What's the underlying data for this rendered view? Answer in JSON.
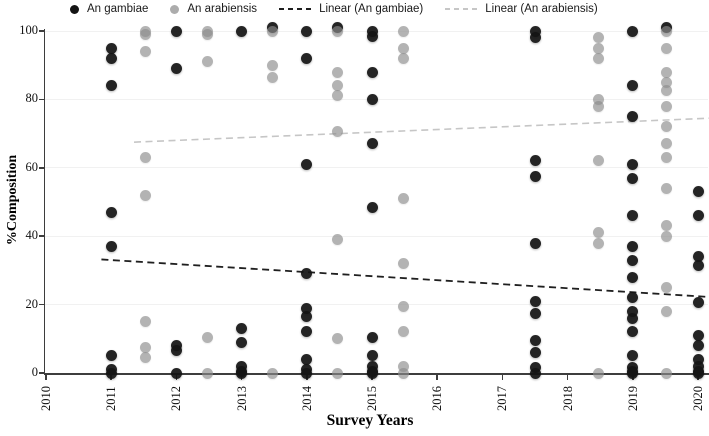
{
  "chart_data": {
    "type": "scatter",
    "title": "",
    "xlabel": "Survey Years",
    "ylabel": "%Composition",
    "x_ticks": [
      "2010",
      "2011",
      "2012",
      "2013",
      "2014",
      "2015",
      "2016",
      "2017",
      "2018",
      "2019",
      "2020"
    ],
    "y_ticks": [
      0,
      20,
      40,
      60,
      80,
      100
    ],
    "xlim": [
      2010,
      2020.3
    ],
    "ylim": [
      0,
      100
    ],
    "grid": "faint-horizontal",
    "legend_position": "top",
    "series": [
      {
        "name": "An gambiae",
        "type": "scatter",
        "marker": "circle",
        "color": "#141414",
        "points": [
          [
            2011,
            95
          ],
          [
            2011,
            92
          ],
          [
            2011,
            84
          ],
          [
            2011,
            47
          ],
          [
            2011,
            37
          ],
          [
            2011,
            5
          ],
          [
            2011,
            1
          ],
          [
            2011,
            0
          ],
          [
            2012,
            100
          ],
          [
            2012,
            89
          ],
          [
            2012,
            8
          ],
          [
            2012,
            6.5
          ],
          [
            2012,
            0
          ],
          [
            2013,
            100
          ],
          [
            2013,
            13
          ],
          [
            2013,
            9
          ],
          [
            2013,
            2
          ],
          [
            2013,
            0.5
          ],
          [
            2013,
            0
          ],
          [
            2013.47,
            101
          ],
          [
            2014,
            100
          ],
          [
            2014,
            92
          ],
          [
            2014,
            61
          ],
          [
            2014,
            29
          ],
          [
            2014,
            19
          ],
          [
            2014,
            16.5
          ],
          [
            2014,
            12
          ],
          [
            2014,
            4
          ],
          [
            2014,
            1
          ],
          [
            2014,
            0
          ],
          [
            2014.47,
            101
          ],
          [
            2015,
            100
          ],
          [
            2015,
            98.5
          ],
          [
            2015,
            88
          ],
          [
            2015,
            80
          ],
          [
            2015,
            67
          ],
          [
            2015,
            48.5
          ],
          [
            2015,
            10.5
          ],
          [
            2015,
            5
          ],
          [
            2015,
            2
          ],
          [
            2015,
            0.5
          ],
          [
            2015,
            0
          ],
          [
            2017.5,
            100
          ],
          [
            2017.5,
            98
          ],
          [
            2017.5,
            62
          ],
          [
            2017.5,
            57.5
          ],
          [
            2017.5,
            38
          ],
          [
            2017.5,
            21
          ],
          [
            2017.5,
            17.5
          ],
          [
            2017.5,
            9.5
          ],
          [
            2017.5,
            6
          ],
          [
            2017.5,
            1.5
          ],
          [
            2017.5,
            0
          ],
          [
            2019,
            100
          ],
          [
            2019,
            84
          ],
          [
            2019,
            75
          ],
          [
            2019,
            61
          ],
          [
            2019,
            57
          ],
          [
            2019,
            46
          ],
          [
            2019,
            37
          ],
          [
            2019,
            33
          ],
          [
            2019,
            28
          ],
          [
            2019,
            22
          ],
          [
            2019,
            18
          ],
          [
            2019,
            16
          ],
          [
            2019,
            12
          ],
          [
            2019,
            5
          ],
          [
            2019,
            1.5
          ],
          [
            2019,
            0.5
          ],
          [
            2019,
            0
          ],
          [
            2019.51,
            101
          ],
          [
            2020,
            53
          ],
          [
            2020,
            46
          ],
          [
            2020,
            34
          ],
          [
            2020,
            31.5
          ],
          [
            2020,
            20.5
          ],
          [
            2020,
            11
          ],
          [
            2020,
            8
          ],
          [
            2020,
            4
          ],
          [
            2020,
            2
          ],
          [
            2020,
            0.5
          ],
          [
            2020,
            0
          ]
        ]
      },
      {
        "name": "An arabiensis",
        "type": "scatter",
        "marker": "circle",
        "color": "#8c8c8c",
        "points": [
          [
            2011.52,
            100
          ],
          [
            2011.52,
            99
          ],
          [
            2011.52,
            94
          ],
          [
            2011.52,
            63
          ],
          [
            2011.52,
            52
          ],
          [
            2011.52,
            15
          ],
          [
            2011.52,
            7.5
          ],
          [
            2011.52,
            4.5
          ],
          [
            2012.48,
            100
          ],
          [
            2012.48,
            99
          ],
          [
            2012.48,
            91
          ],
          [
            2012.48,
            10.5
          ],
          [
            2012.48,
            0
          ],
          [
            2013.47,
            100
          ],
          [
            2013.47,
            90
          ],
          [
            2013.47,
            86.5
          ],
          [
            2013.47,
            0
          ],
          [
            2014.47,
            100
          ],
          [
            2014.47,
            88
          ],
          [
            2014.47,
            84
          ],
          [
            2014.47,
            81
          ],
          [
            2014.47,
            70.5
          ],
          [
            2014.47,
            39
          ],
          [
            2014.47,
            10
          ],
          [
            2014.47,
            0
          ],
          [
            2015.48,
            100
          ],
          [
            2015.48,
            95
          ],
          [
            2015.48,
            92
          ],
          [
            2015.48,
            51
          ],
          [
            2015.48,
            32
          ],
          [
            2015.48,
            19.5
          ],
          [
            2015.48,
            12
          ],
          [
            2015.48,
            2
          ],
          [
            2015.48,
            0
          ],
          [
            2018.47,
            98
          ],
          [
            2018.47,
            95
          ],
          [
            2018.47,
            92
          ],
          [
            2018.47,
            80
          ],
          [
            2018.47,
            78
          ],
          [
            2018.47,
            62
          ],
          [
            2018.47,
            41
          ],
          [
            2018.47,
            38
          ],
          [
            2018.47,
            0
          ],
          [
            2019.51,
            100
          ],
          [
            2019.51,
            95
          ],
          [
            2019.51,
            88
          ],
          [
            2019.51,
            85
          ],
          [
            2019.51,
            82.5
          ],
          [
            2019.51,
            78
          ],
          [
            2019.51,
            72
          ],
          [
            2019.51,
            67
          ],
          [
            2019.51,
            63
          ],
          [
            2019.51,
            54
          ],
          [
            2019.51,
            43
          ],
          [
            2019.51,
            40
          ],
          [
            2019.51,
            25
          ],
          [
            2019.51,
            18
          ],
          [
            2019.51,
            0
          ]
        ]
      },
      {
        "name": "Linear (An gambiae)",
        "type": "trendline",
        "style": "dashed",
        "color": "#1f1f1f",
        "line": [
          [
            2010.85,
            33.2
          ],
          [
            2020.2,
            22.2
          ]
        ]
      },
      {
        "name": "Linear (An arabiensis)",
        "type": "trendline",
        "style": "dashed",
        "color": "#c6c6c6",
        "line": [
          [
            2011.35,
            67.5
          ],
          [
            2020.3,
            74.6
          ]
        ]
      }
    ]
  }
}
